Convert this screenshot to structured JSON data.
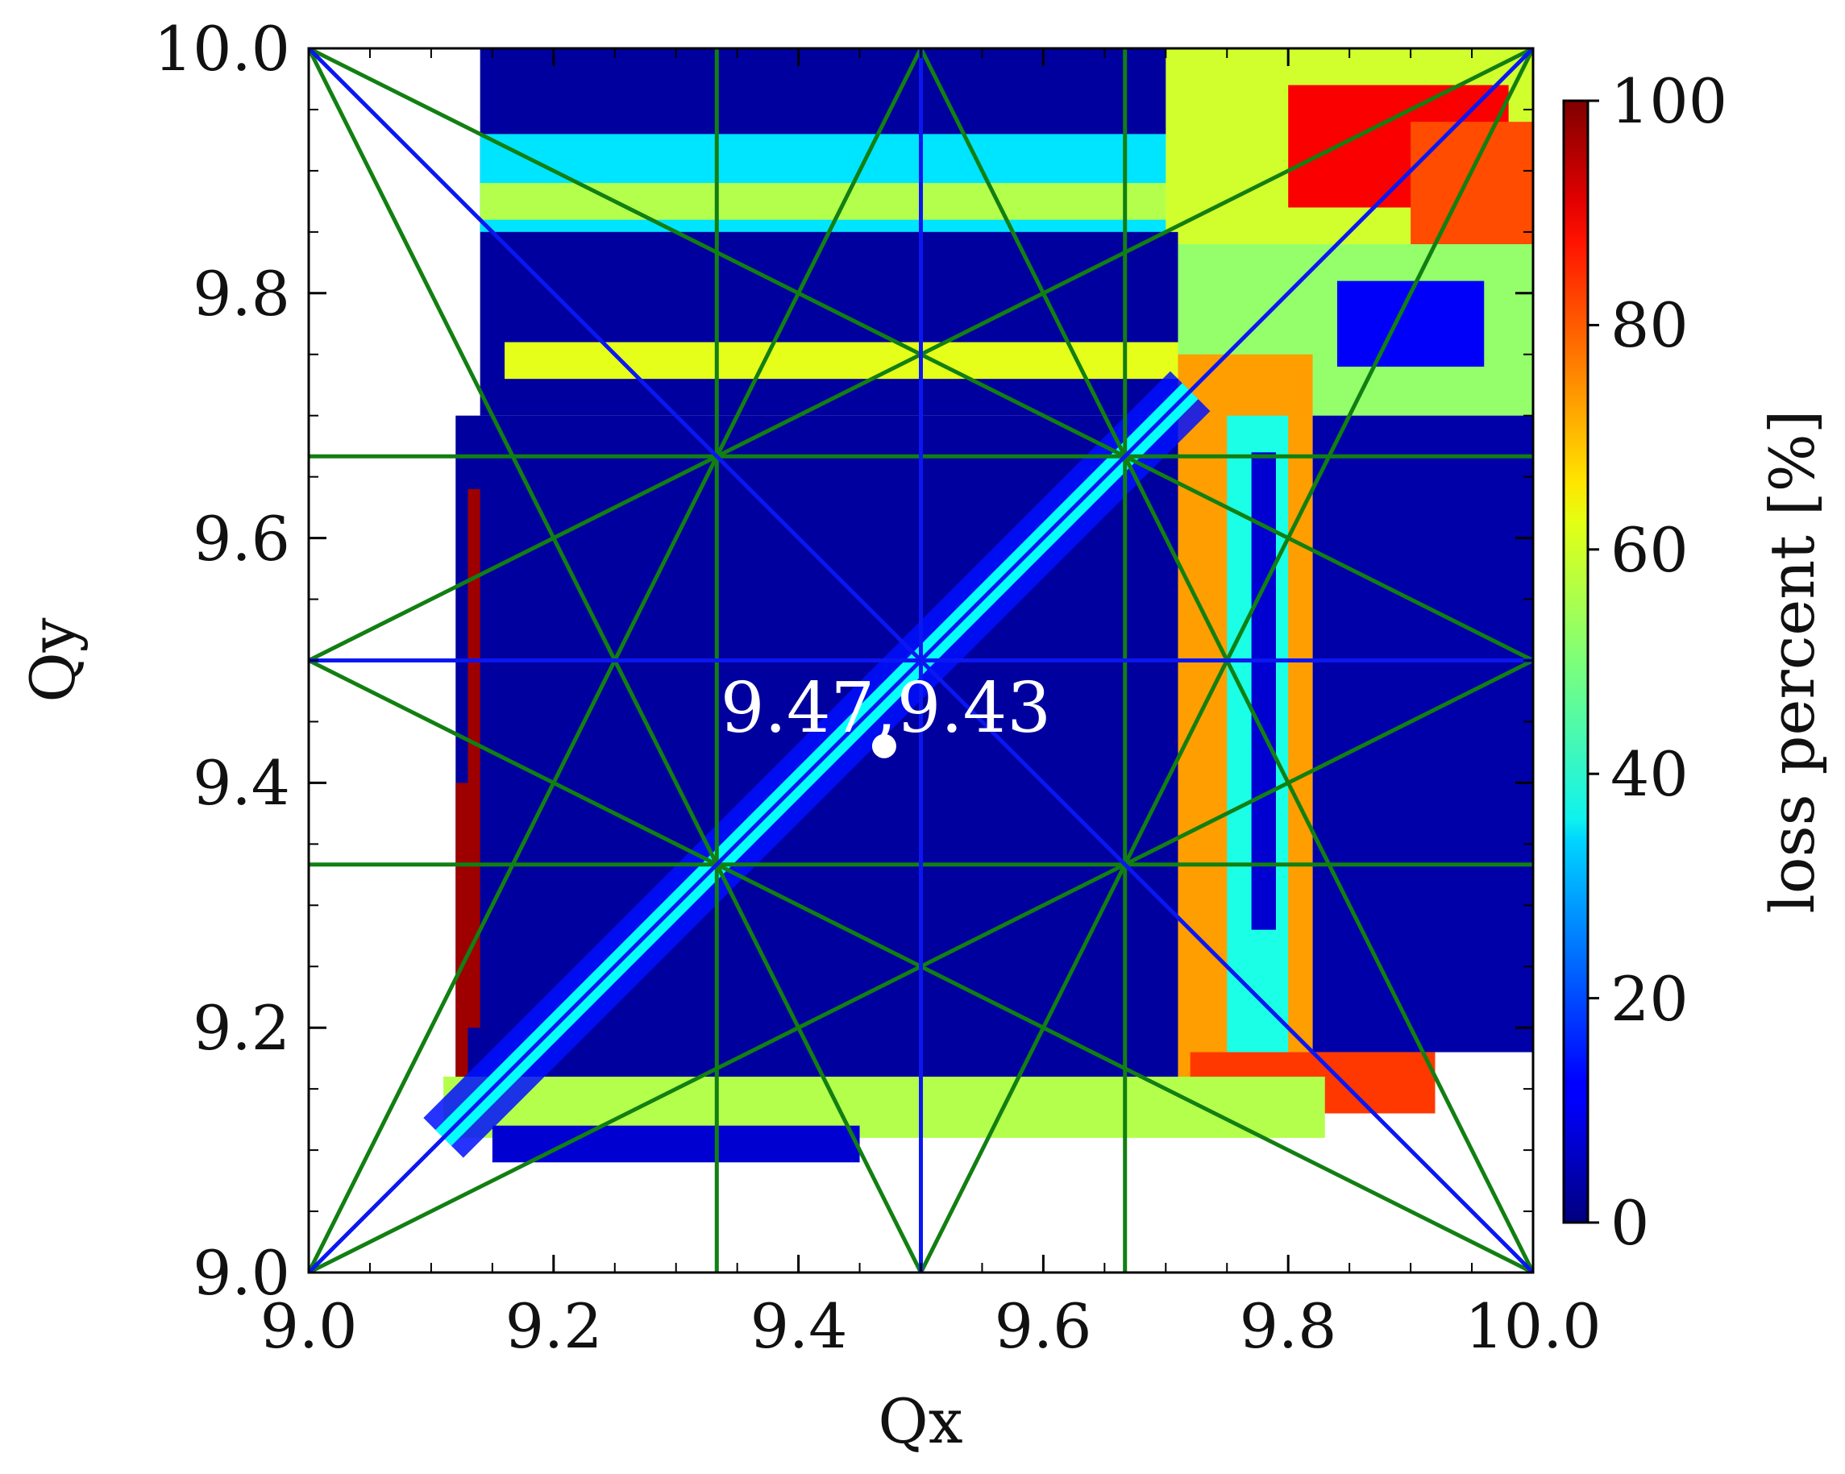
{
  "chart_data": {
    "type": "heatmap",
    "title": "",
    "xlabel": "Qx",
    "ylabel": "Qy",
    "xlim": [
      9.0,
      10.0
    ],
    "ylim": [
      9.0,
      10.0
    ],
    "x_ticks": [
      9.0,
      9.2,
      9.4,
      9.6,
      9.8,
      10.0
    ],
    "y_ticks": [
      9.0,
      9.2,
      9.4,
      9.6,
      9.8,
      10.0
    ],
    "x_tick_labels": [
      "9.0",
      "9.2",
      "9.4",
      "9.6",
      "9.8",
      "10.0"
    ],
    "y_tick_labels": [
      "9.0",
      "9.2",
      "9.4",
      "9.6",
      "9.8",
      "10.0"
    ],
    "colorbar": {
      "label": "loss percent [%]",
      "range": [
        0,
        100
      ],
      "ticks": [
        0,
        20,
        40,
        60,
        80,
        100
      ],
      "tick_labels": [
        "0",
        "20",
        "40",
        "60",
        "80",
        "100"
      ],
      "colormap": "jet"
    },
    "grid": false,
    "regions": [
      {
        "x": [
          9.14,
          9.71
        ],
        "y": [
          9.85,
          10.0
        ],
        "loss": 3
      },
      {
        "x": [
          9.14,
          9.71
        ],
        "y": [
          9.85,
          9.93
        ],
        "loss": 35
      },
      {
        "x": [
          9.14,
          9.71
        ],
        "y": [
          9.86,
          9.89
        ],
        "loss": 55
      },
      {
        "x": [
          9.7,
          10.0
        ],
        "y": [
          9.84,
          10.0
        ],
        "loss": 58
      },
      {
        "x": [
          9.8,
          9.98
        ],
        "y": [
          9.87,
          9.97
        ],
        "loss": 88
      },
      {
        "x": [
          9.9,
          10.0
        ],
        "y": [
          9.84,
          9.94
        ],
        "loss": 80
      },
      {
        "x": [
          9.14,
          9.71
        ],
        "y": [
          9.7,
          9.85
        ],
        "loss": 3
      },
      {
        "x": [
          9.16,
          9.71
        ],
        "y": [
          9.73,
          9.76
        ],
        "loss": 60
      },
      {
        "x": [
          9.71,
          10.0
        ],
        "y": [
          9.7,
          9.84
        ],
        "loss": 52
      },
      {
        "x": [
          9.84,
          9.96
        ],
        "y": [
          9.74,
          9.81
        ],
        "loss": 12
      },
      {
        "x": [
          9.12,
          9.71
        ],
        "y": [
          9.13,
          9.7
        ],
        "loss": 3
      },
      {
        "x": [
          9.71,
          9.82
        ],
        "y": [
          9.13,
          9.75
        ],
        "loss": 72
      },
      {
        "x": [
          9.75,
          9.8
        ],
        "y": [
          9.18,
          9.7
        ],
        "loss": 40
      },
      {
        "x": [
          9.77,
          9.79
        ],
        "y": [
          9.28,
          9.67
        ],
        "loss": 8
      },
      {
        "x": [
          9.82,
          10.0
        ],
        "y": [
          9.18,
          9.7
        ],
        "loss": 4
      },
      {
        "x": [
          9.72,
          9.92
        ],
        "y": [
          9.13,
          9.18
        ],
        "loss": 82
      },
      {
        "x": [
          9.11,
          9.83
        ],
        "y": [
          9.11,
          9.16
        ],
        "loss": 55
      },
      {
        "x": [
          9.15,
          9.45
        ],
        "y": [
          9.09,
          9.12
        ],
        "loss": 8
      },
      {
        "x": [
          9.13,
          9.14
        ],
        "y": [
          9.2,
          9.64
        ],
        "loss": 97
      },
      {
        "x": [
          9.12,
          9.13
        ],
        "y": [
          9.16,
          9.4
        ],
        "loss": 97
      }
    ],
    "resonance_lines": {
      "diagonal_color": "#0b17f2",
      "grid_color": "#127f12",
      "blue_lines": [
        {
          "from": [
            9.0,
            9.0
          ],
          "to": [
            10.0,
            10.0
          ]
        },
        {
          "from": [
            9.0,
            10.0
          ],
          "to": [
            10.0,
            9.0
          ]
        },
        {
          "from": [
            9.5,
            9.0
          ],
          "to": [
            9.5,
            10.0
          ]
        },
        {
          "from": [
            9.0,
            9.5
          ],
          "to": [
            10.0,
            9.5
          ]
        }
      ],
      "green_lines": [
        {
          "from": [
            9.3333,
            9.0
          ],
          "to": [
            9.3333,
            10.0
          ]
        },
        {
          "from": [
            9.6667,
            9.0
          ],
          "to": [
            9.6667,
            10.0
          ]
        },
        {
          "from": [
            9.0,
            9.3333
          ],
          "to": [
            10.0,
            9.3333
          ]
        },
        {
          "from": [
            9.0,
            9.6667
          ],
          "to": [
            10.0,
            9.6667
          ]
        },
        {
          "from": [
            9.0,
            9.0
          ],
          "to": [
            10.0,
            9.5
          ]
        },
        {
          "from": [
            9.0,
            9.5
          ],
          "to": [
            10.0,
            10.0
          ]
        },
        {
          "from": [
            9.0,
            9.5
          ],
          "to": [
            10.0,
            9.0
          ]
        },
        {
          "from": [
            9.0,
            10.0
          ],
          "to": [
            10.0,
            9.5
          ]
        },
        {
          "from": [
            9.0,
            9.0
          ],
          "to": [
            9.5,
            10.0
          ]
        },
        {
          "from": [
            9.5,
            9.0
          ],
          "to": [
            10.0,
            10.0
          ]
        },
        {
          "from": [
            9.0,
            10.0
          ],
          "to": [
            9.5,
            9.0
          ]
        },
        {
          "from": [
            9.5,
            10.0
          ],
          "to": [
            10.0,
            9.0
          ]
        }
      ]
    },
    "working_point": {
      "x": 9.47,
      "y": 9.43,
      "label": "9.47,9.43",
      "color": "#ffffff"
    }
  }
}
